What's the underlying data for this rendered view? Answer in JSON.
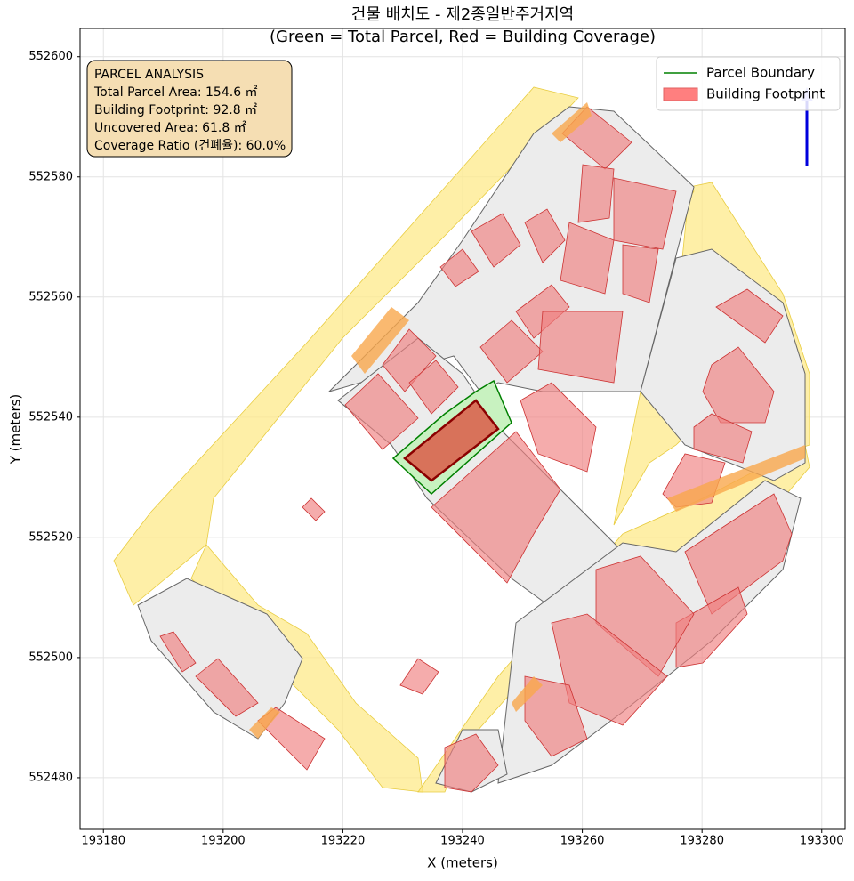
{
  "chart_data": {
    "type": "map",
    "title": "건물 배치도 - 제2종일반주거지역",
    "subtitle": "(Green = Total Parcel, Red = Building Coverage)",
    "xlabel": "X (meters)",
    "ylabel": "Y (meters)",
    "xlim": [
      193176.1,
      193303.9
    ],
    "ylim": [
      552471.4,
      552604.7
    ],
    "xticks": [
      193180,
      193200,
      193220,
      193240,
      193260,
      193280,
      193300
    ],
    "yticks": [
      552480,
      552500,
      552520,
      552540,
      552560,
      552580,
      552600
    ],
    "grid": true,
    "legend": "upper right",
    "series": [
      {
        "name": "Parcel Boundary",
        "color": "#008000"
      },
      {
        "name": "Building Footprint",
        "color": "#ff7f7f"
      }
    ],
    "annotation": [
      "PARCEL ANALYSIS",
      "Total Parcel Area: 154.6 ㎡",
      "Building Footprint: 92.8 ㎡",
      "Uncovered Area: 61.8 ㎡",
      "Coverage Ratio (건폐율): 60.0%"
    ]
  }
}
